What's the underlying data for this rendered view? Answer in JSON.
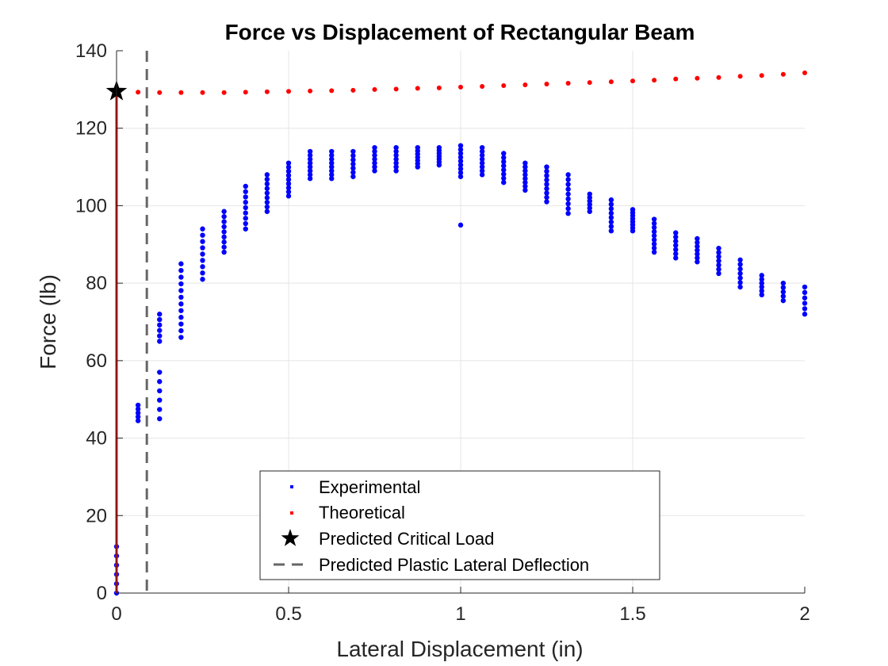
{
  "chart_data": {
    "type": "scatter",
    "title": "Force vs Displacement of Rectangular Beam",
    "xlabel": "Lateral Displacement (in)",
    "ylabel": "Force (lb)",
    "xlim": [
      0,
      2
    ],
    "ylim": [
      0,
      140
    ],
    "xticks": [
      0,
      0.5,
      1,
      1.5,
      2
    ],
    "xtick_labels": [
      "0",
      "0.5",
      "1",
      "1.5",
      "2"
    ],
    "yticks": [
      0,
      20,
      40,
      60,
      80,
      100,
      120,
      140
    ],
    "ytick_labels": [
      "0",
      "20",
      "40",
      "60",
      "80",
      "100",
      "120",
      "140"
    ],
    "grid": true,
    "legend_position": "bottom-center",
    "colors": {
      "experimental": "#0000ff",
      "theoretical": "#ff0000",
      "critical": "#000000",
      "plastic": "#666666"
    },
    "series": [
      {
        "name": "Experimental",
        "kind": "clusters",
        "clusters": [
          {
            "x": 0.0,
            "ymin": 0,
            "ymax": 12,
            "n": 6
          },
          {
            "x": 0.0625,
            "ymin": 44.5,
            "ymax": 48.5,
            "n": 5
          },
          {
            "x": 0.125,
            "ymin": 45,
            "ymax": 57,
            "n": 6
          },
          {
            "x": 0.125,
            "ymin": 65,
            "ymax": 72,
            "n": 6
          },
          {
            "x": 0.1875,
            "ymin": 66,
            "ymax": 85,
            "n": 12
          },
          {
            "x": 0.25,
            "ymin": 81,
            "ymax": 94,
            "n": 9
          },
          {
            "x": 0.3125,
            "ymin": 88,
            "ymax": 98.5,
            "n": 9
          },
          {
            "x": 0.375,
            "ymin": 94,
            "ymax": 105,
            "n": 9
          },
          {
            "x": 0.4375,
            "ymin": 98.5,
            "ymax": 108,
            "n": 9
          },
          {
            "x": 0.5,
            "ymin": 102.5,
            "ymax": 111,
            "n": 9
          },
          {
            "x": 0.5625,
            "ymin": 107,
            "ymax": 114,
            "n": 8
          },
          {
            "x": 0.625,
            "ymin": 107,
            "ymax": 114,
            "n": 8
          },
          {
            "x": 0.6875,
            "ymin": 107.5,
            "ymax": 114,
            "n": 7
          },
          {
            "x": 0.75,
            "ymin": 109,
            "ymax": 115,
            "n": 7
          },
          {
            "x": 0.8125,
            "ymin": 109,
            "ymax": 115,
            "n": 7
          },
          {
            "x": 0.875,
            "ymin": 110,
            "ymax": 115,
            "n": 7
          },
          {
            "x": 0.9375,
            "ymin": 110.5,
            "ymax": 115,
            "n": 7
          },
          {
            "x": 1.0,
            "ymin": 107.5,
            "ymax": 115.5,
            "n": 9
          },
          {
            "x": 1.0625,
            "ymin": 108,
            "ymax": 115,
            "n": 8
          },
          {
            "x": 1.125,
            "ymin": 106,
            "ymax": 113.5,
            "n": 8
          },
          {
            "x": 1.1875,
            "ymin": 104,
            "ymax": 111,
            "n": 8
          },
          {
            "x": 1.25,
            "ymin": 101,
            "ymax": 110,
            "n": 9
          },
          {
            "x": 1.3125,
            "ymin": 98,
            "ymax": 108,
            "n": 9
          },
          {
            "x": 1.375,
            "ymin": 98.5,
            "ymax": 103,
            "n": 6
          },
          {
            "x": 1.4375,
            "ymin": 93.5,
            "ymax": 101.5,
            "n": 8
          },
          {
            "x": 1.5,
            "ymin": 93.5,
            "ymax": 99,
            "n": 8
          },
          {
            "x": 1.5625,
            "ymin": 88,
            "ymax": 96.5,
            "n": 9
          },
          {
            "x": 1.625,
            "ymin": 86.5,
            "ymax": 93,
            "n": 7
          },
          {
            "x": 1.6875,
            "ymin": 85.5,
            "ymax": 91.5,
            "n": 7
          },
          {
            "x": 1.75,
            "ymin": 82.5,
            "ymax": 89,
            "n": 7
          },
          {
            "x": 1.8125,
            "ymin": 79,
            "ymax": 86,
            "n": 7
          },
          {
            "x": 1.875,
            "ymin": 77,
            "ymax": 82,
            "n": 6
          },
          {
            "x": 1.9375,
            "ymin": 75.5,
            "ymax": 80,
            "n": 5
          },
          {
            "x": 2.0,
            "ymin": 72,
            "ymax": 79,
            "n": 6
          }
        ],
        "extra_points": [
          {
            "x": 1.0,
            "y": 95
          }
        ]
      },
      {
        "name": "Theoretical",
        "x": [
          0.0625,
          0.125,
          0.1875,
          0.25,
          0.3125,
          0.375,
          0.4375,
          0.5,
          0.5625,
          0.625,
          0.6875,
          0.75,
          0.8125,
          0.875,
          0.9375,
          1.0,
          1.0625,
          1.125,
          1.1875,
          1.25,
          1.3125,
          1.375,
          1.4375,
          1.5,
          1.5625,
          1.625,
          1.6875,
          1.75,
          1.8125,
          1.875,
          1.9375,
          2.0
        ],
        "y": [
          129.3,
          129.2,
          129.2,
          129.2,
          129.2,
          129.3,
          129.4,
          129.5,
          129.6,
          129.7,
          129.8,
          130.0,
          130.1,
          130.3,
          130.4,
          130.6,
          130.8,
          131.0,
          131.2,
          131.4,
          131.6,
          131.8,
          132.0,
          132.2,
          132.4,
          132.7,
          132.9,
          133.1,
          133.4,
          133.6,
          133.9,
          134.3
        ]
      },
      {
        "name": "Predicted Critical Load",
        "x": 0.0,
        "y": 129.5
      },
      {
        "name": "Predicted Plastic Lateral Deflection",
        "x": 0.088
      }
    ],
    "theoretical_line": {
      "x": 0.0,
      "y_from": 0,
      "y_to": 129.5
    }
  }
}
